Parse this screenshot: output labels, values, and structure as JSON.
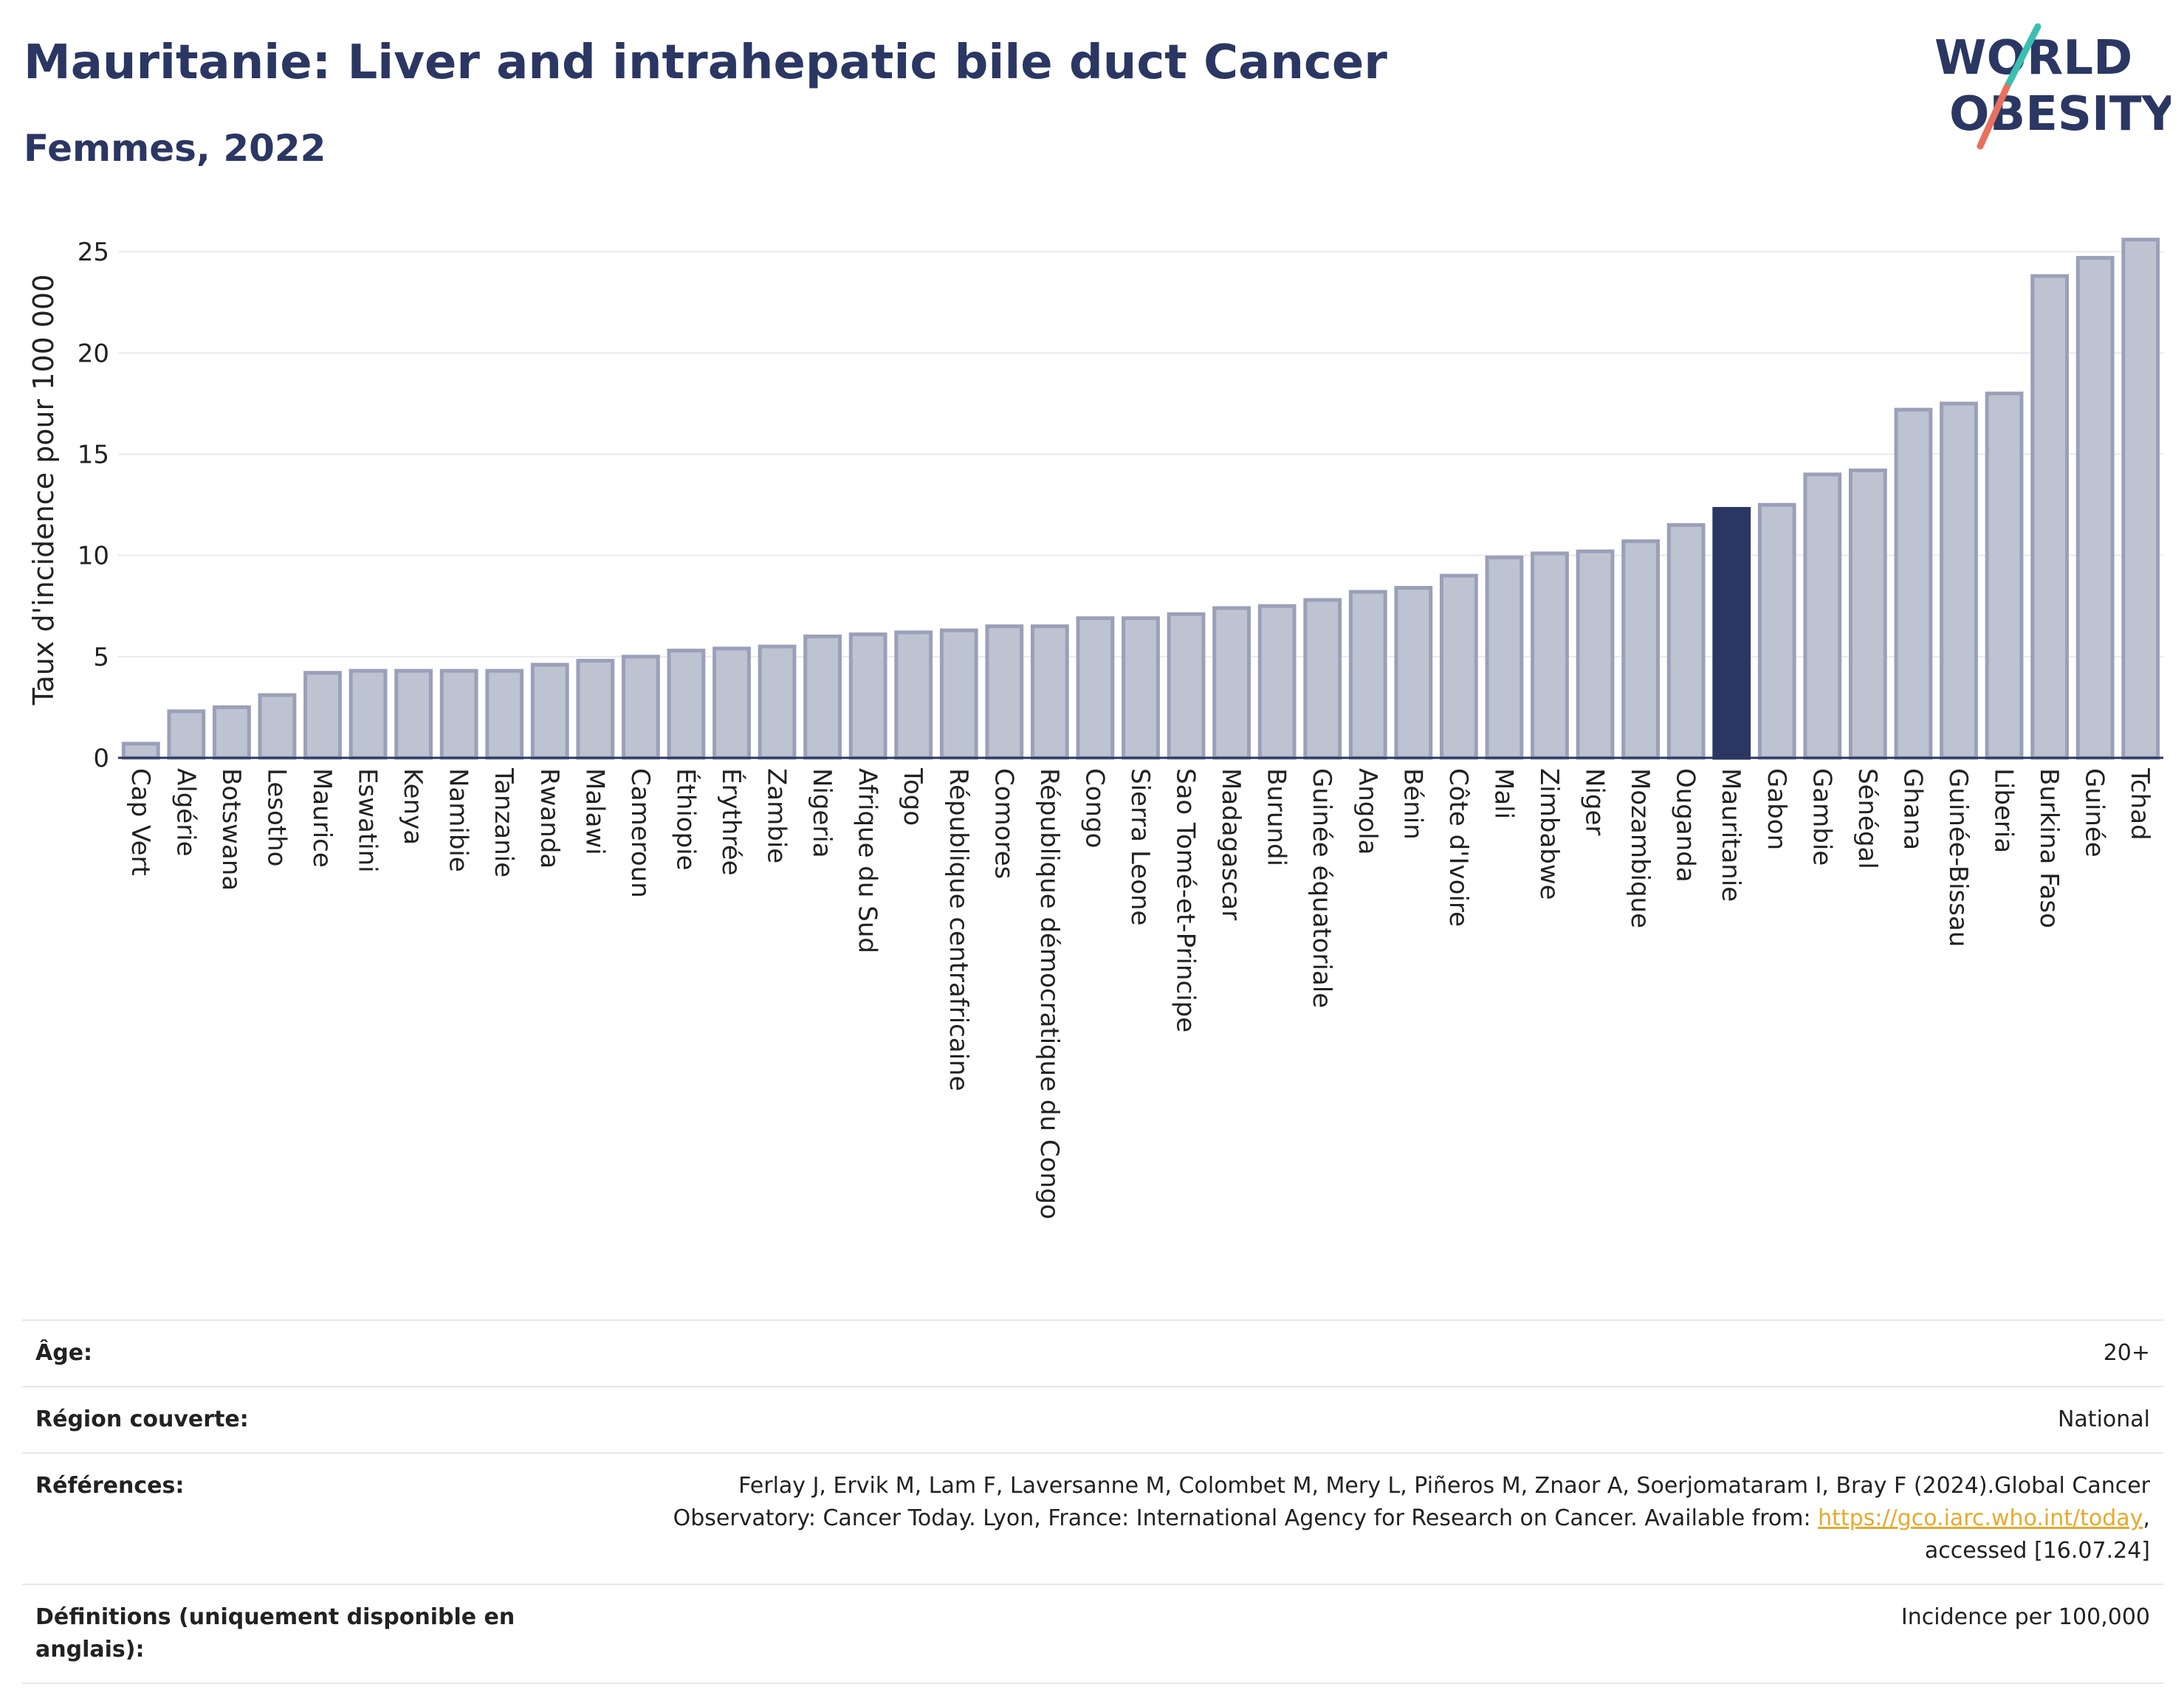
{
  "header": {
    "title": "Mauritanie: Liver and intrahepatic bile duct Cancer",
    "subtitle": "Femmes, 2022"
  },
  "logo": {
    "line1": "WORLD",
    "line2": "OBESITY",
    "colors": {
      "text": "#2b3763",
      "slash_teal": "#3bbfb3",
      "slash_red": "#e8705f"
    }
  },
  "colors": {
    "bar_fill": "#bec3d1",
    "bar_stroke": "#9aa0b8",
    "highlight": "#2b3763",
    "axis": "#2b3763",
    "grid": "#e9e9ee"
  },
  "chart_data": {
    "type": "bar",
    "ylabel": "Taux d'incidence pour 100 000",
    "xlabel": "",
    "ylim": [
      0,
      26.5
    ],
    "yticks": [
      0,
      5,
      10,
      15,
      20,
      25
    ],
    "grid": true,
    "highlight": "Mauritanie",
    "categories": [
      "Cap Vert",
      "Algérie",
      "Botswana",
      "Lesotho",
      "Maurice",
      "Eswatini",
      "Kenya",
      "Namibie",
      "Tanzanie",
      "Rwanda",
      "Malawi",
      "Cameroun",
      "Éthiopie",
      "Érythrée",
      "Zambie",
      "Nigeria",
      "Afrique du Sud",
      "Togo",
      "République centrafricaine",
      "Comores",
      "République démocratique du Congo",
      "Congo",
      "Sierra Leone",
      "Sao Tomé-et-Principe",
      "Madagascar",
      "Burundi",
      "Guinée équatoriale",
      "Angola",
      "Bénin",
      "Côte d'Ivoire",
      "Mali",
      "Zimbabwe",
      "Niger",
      "Mozambique",
      "Ouganda",
      "Mauritanie",
      "Gabon",
      "Gambie",
      "Sénégal",
      "Ghana",
      "Guinée-Bissau",
      "Liberia",
      "Burkina Faso",
      "Guinée",
      "Tchad"
    ],
    "values": [
      0.7,
      2.3,
      2.5,
      3.1,
      4.2,
      4.3,
      4.3,
      4.3,
      4.3,
      4.6,
      4.8,
      5.0,
      5.3,
      5.4,
      5.5,
      6.0,
      6.1,
      6.2,
      6.3,
      6.5,
      6.5,
      6.9,
      6.9,
      7.1,
      7.4,
      7.5,
      7.8,
      8.2,
      8.4,
      9.0,
      9.9,
      10.1,
      10.2,
      10.7,
      11.5,
      12.3,
      12.5,
      14.0,
      14.2,
      17.2,
      17.5,
      18.0,
      23.8,
      24.7,
      25.6
    ]
  },
  "info": {
    "age_label": "Âge:",
    "age_value": "20+",
    "region_label": "Région couverte:",
    "region_value": "National",
    "refs_label": "Références:",
    "refs_line1": "Ferlay J, Ervik M, Lam F, Laversanne M, Colombet M, Mery L, Piñeros M, Znaor A, Soerjomataram I, Bray F (2024).Global Cancer",
    "refs_line2": "Observatory: Cancer Today. Lyon, France: International Agency for Research on Cancer. Available from: ",
    "refs_link": "https://gco.iarc.who.int/today",
    "refs_line2_end": ",",
    "refs_line3": "accessed [16.07.24]",
    "defs_label": "Définitions (uniquement disponible en anglais):",
    "defs_value": "Incidence per 100,000"
  }
}
